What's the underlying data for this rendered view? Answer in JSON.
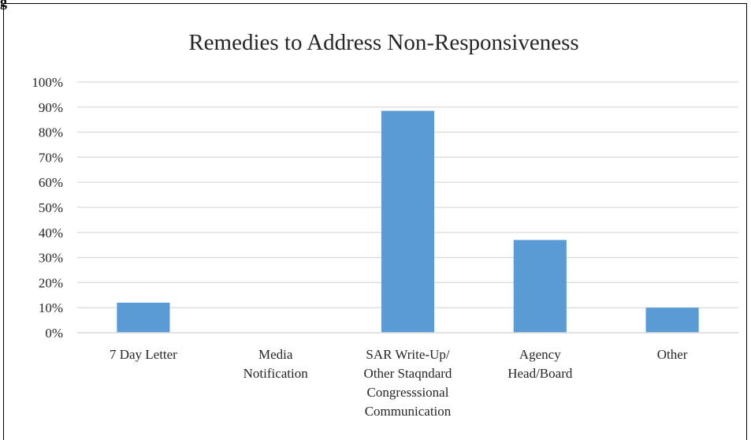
{
  "header": {
    "cut_label": "g"
  },
  "chart_data": {
    "type": "bar",
    "title": "Remedies to Address Non-Responsiveness",
    "categories": [
      "7 Day Letter",
      "Media Notification",
      "SAR Write-Up/ Other Staqndard Congresssional Communication",
      "Agency Head/Board",
      "Other"
    ],
    "category_lines": [
      [
        "7 Day Letter"
      ],
      [
        "Media",
        "Notification"
      ],
      [
        "SAR Write-Up/",
        "Other Staqndard",
        "Congresssional",
        "Communication"
      ],
      [
        "Agency",
        "Head/Board"
      ],
      [
        "Other"
      ]
    ],
    "values": [
      12,
      0,
      88.5,
      37,
      10
    ],
    "ylim": [
      0,
      100
    ],
    "yticks": [
      "0%",
      "10%",
      "20%",
      "30%",
      "40%",
      "50%",
      "60%",
      "70%",
      "80%",
      "90%",
      "100%"
    ],
    "grid": true,
    "legend": "none",
    "bar_color": "#5B9BD5",
    "grid_color": "#D9D9D9"
  }
}
